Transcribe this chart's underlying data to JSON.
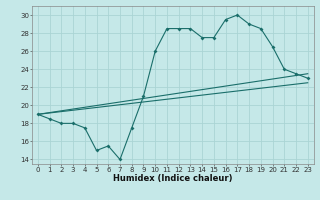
{
  "xlabel": "Humidex (Indice chaleur)",
  "bg_color": "#c5e8e8",
  "grid_color": "#aad4d4",
  "line_color": "#1a6e6a",
  "xlim": [
    -0.5,
    23.5
  ],
  "ylim": [
    13.5,
    31
  ],
  "xticks": [
    0,
    1,
    2,
    3,
    4,
    5,
    6,
    7,
    8,
    9,
    10,
    11,
    12,
    13,
    14,
    15,
    16,
    17,
    18,
    19,
    20,
    21,
    22,
    23
  ],
  "yticks": [
    14,
    16,
    18,
    20,
    22,
    24,
    26,
    28,
    30
  ],
  "series1_x": [
    0,
    1,
    2,
    3,
    4,
    5,
    6,
    7,
    8,
    9,
    10,
    11,
    12,
    13,
    14,
    15,
    16,
    17,
    18,
    19,
    20,
    21,
    22,
    23
  ],
  "series1_y": [
    19,
    18.5,
    18,
    18,
    17.5,
    15,
    15.5,
    14,
    17.5,
    21,
    26,
    28.5,
    28.5,
    28.5,
    27.5,
    27.5,
    29.5,
    30,
    29,
    28.5,
    26.5,
    24,
    23.5,
    23
  ],
  "line2_x": [
    0,
    23
  ],
  "line2_y": [
    19,
    22.5
  ],
  "line3_x": [
    0,
    23
  ],
  "line3_y": [
    19,
    23.5
  ],
  "xlabel_fontsize": 6,
  "tick_fontsize": 5
}
